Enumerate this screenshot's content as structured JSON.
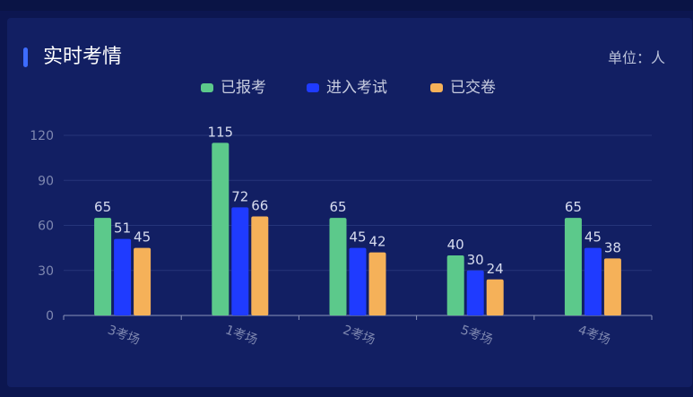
{
  "header": {
    "title": "实时考情",
    "unit": "单位：人"
  },
  "chart_data": {
    "type": "bar",
    "categories": [
      "3考场",
      "1考场",
      "2考场",
      "5考场",
      "4考场"
    ],
    "series": [
      {
        "name": "已报考",
        "values": [
          65,
          115,
          65,
          40,
          65
        ],
        "color": "#5cc98b"
      },
      {
        "name": "进入考试",
        "values": [
          51,
          72,
          45,
          30,
          45
        ],
        "color": "#1f3bff"
      },
      {
        "name": "已交卷",
        "values": [
          45,
          66,
          42,
          24,
          38
        ],
        "color": "#f5b159"
      }
    ],
    "ylim": [
      0,
      120
    ],
    "yticks": [
      0,
      30,
      60,
      90,
      120
    ],
    "grid": true,
    "legend_position": "top-center",
    "xlabel": "",
    "ylabel": ""
  }
}
